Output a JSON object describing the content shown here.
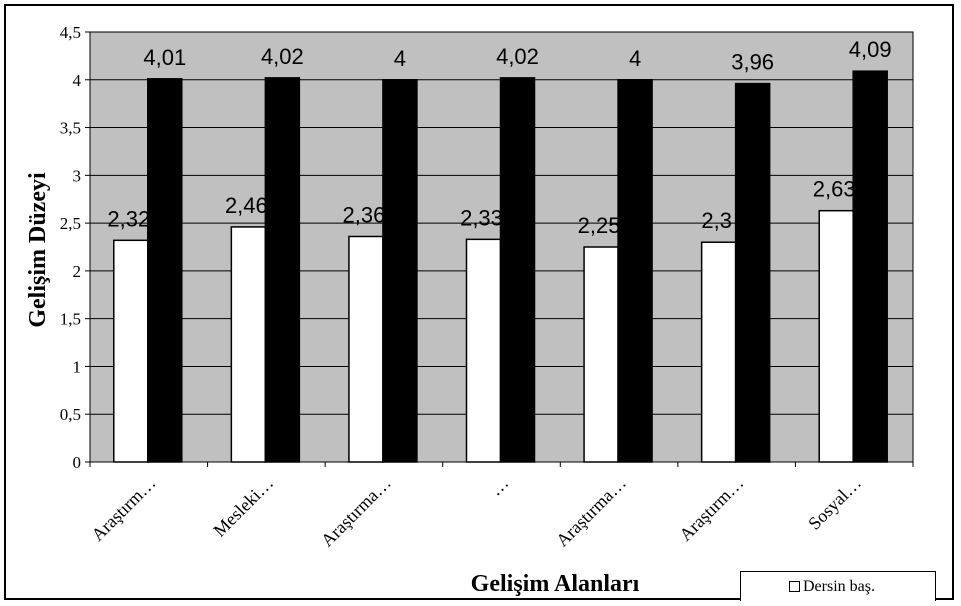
{
  "chart_data": {
    "type": "bar",
    "categories": [
      "Araştırm…",
      "Mesleki…",
      "Araştırma…",
      "…",
      "Araştırma…",
      "Araştırm…",
      "Sosyal…"
    ],
    "series": [
      {
        "name": "Dersin baş.",
        "color": "#ffffff",
        "values": [
          2.32,
          2.46,
          2.36,
          2.33,
          2.25,
          2.3,
          2.63
        ],
        "labels": [
          "2,32",
          "2,46",
          "2,36",
          "2,33",
          "2,25",
          "2,3",
          "2,63"
        ]
      },
      {
        "color": "#000000",
        "values": [
          4.01,
          4.02,
          4,
          4.02,
          4,
          3.96,
          4.09
        ],
        "labels": [
          "4,01",
          "4,02",
          "4",
          "4,02",
          "4",
          "3,96",
          "4,09"
        ]
      }
    ],
    "xlabel": "Gelişim Alanları",
    "ylabel": "Gelişim Düzeyi",
    "ylim": [
      0,
      4.5
    ],
    "yticks": [
      "0",
      "0,5",
      "1",
      "1,5",
      "2",
      "2,5",
      "3",
      "3,5",
      "4",
      "4,5"
    ],
    "grid": true,
    "plot_background": "#c0c0c0",
    "legend_position": "bottom-right"
  },
  "legend": {
    "label": "Dersin baş."
  }
}
